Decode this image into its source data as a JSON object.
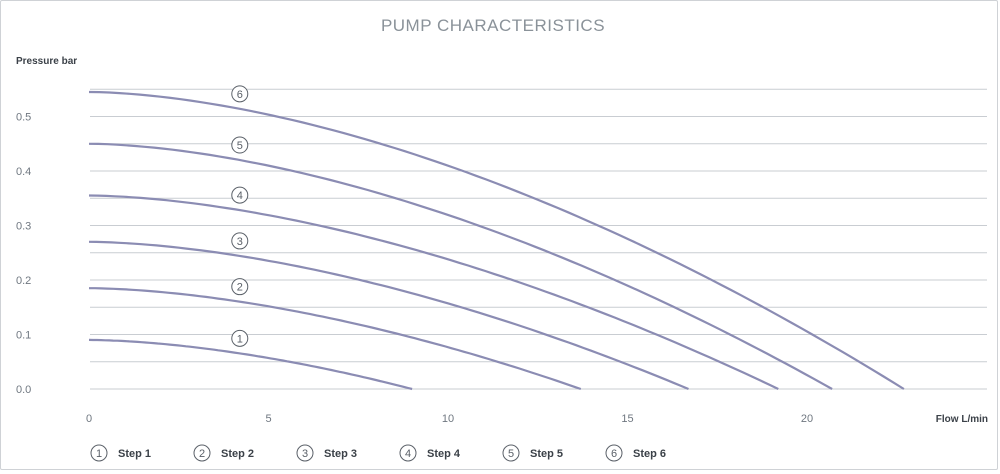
{
  "chart_data": {
    "type": "line",
    "title": "PUMP CHARACTERISTICS",
    "ylabel": "Pressure bar",
    "xlabel": "Flow L/min",
    "xlim": [
      0,
      25
    ],
    "ylim": [
      0,
      0.55
    ],
    "xticks": [
      0,
      5,
      10,
      15,
      20
    ],
    "yticks": [
      0.0,
      0.1,
      0.2,
      0.3,
      0.4,
      0.5
    ],
    "ytick_labels": [
      "0.0",
      "0.1",
      "0.2",
      "0.3",
      "0.4",
      "0.5"
    ],
    "xtick_labels": [
      "0",
      "5",
      "10",
      "15",
      "20"
    ],
    "grid": true,
    "legend_position": "bottom-left",
    "curve_color": "#8b8cb3",
    "series": [
      {
        "name": "Step 1",
        "marker": "1",
        "shutoff_pressure": 0.09,
        "max_flow": 9.0,
        "label_x": 4.2
      },
      {
        "name": "Step 2",
        "marker": "2",
        "shutoff_pressure": 0.185,
        "max_flow": 13.7,
        "label_x": 4.2
      },
      {
        "name": "Step 3",
        "marker": "3",
        "shutoff_pressure": 0.27,
        "max_flow": 16.7,
        "label_x": 4.2
      },
      {
        "name": "Step 4",
        "marker": "4",
        "shutoff_pressure": 0.355,
        "max_flow": 19.2,
        "label_x": 4.2
      },
      {
        "name": "Step 5",
        "marker": "5",
        "shutoff_pressure": 0.45,
        "max_flow": 20.7,
        "label_x": 4.2
      },
      {
        "name": "Step 6",
        "marker": "6",
        "shutoff_pressure": 0.545,
        "max_flow": 22.7,
        "label_x": 4.2
      }
    ]
  }
}
